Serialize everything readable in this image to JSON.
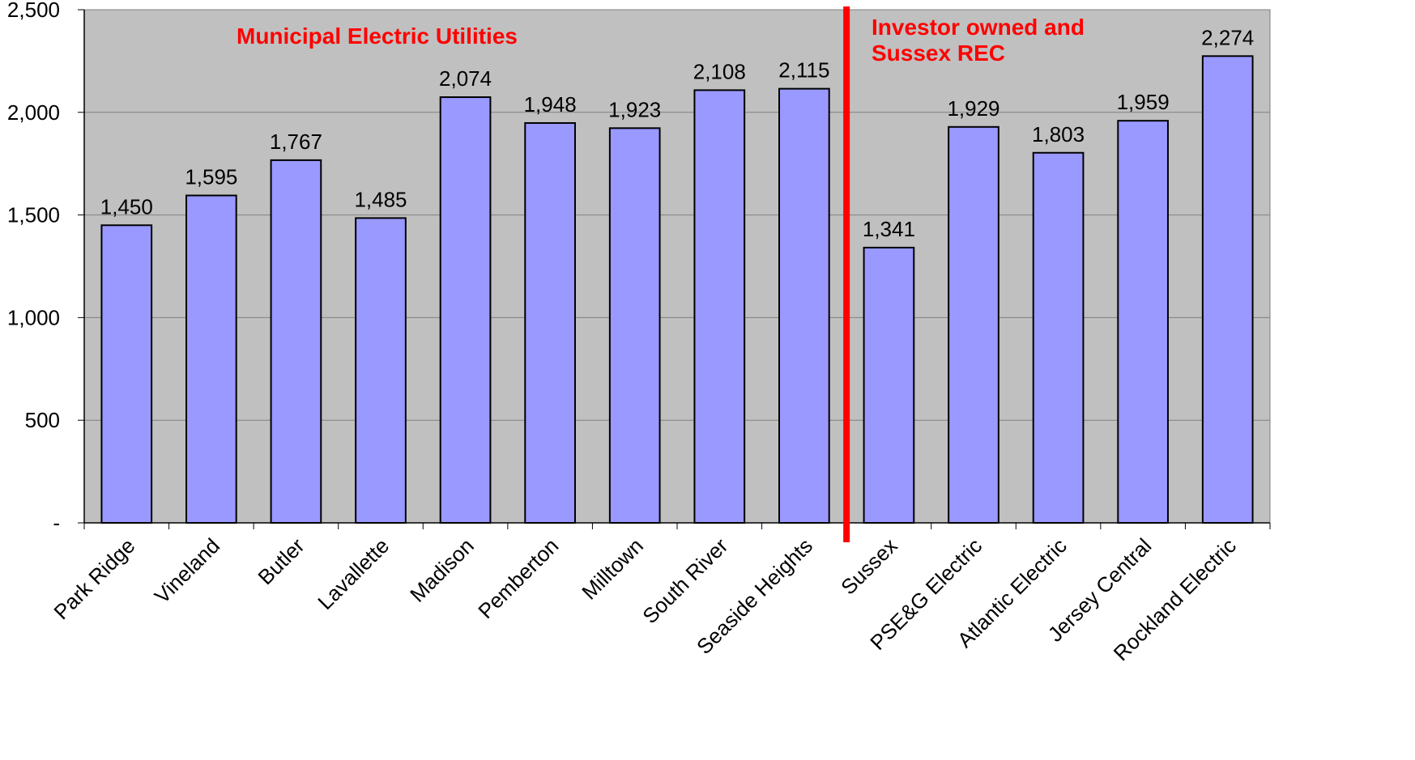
{
  "chart_data": {
    "type": "bar",
    "categories": [
      "Park Ridge",
      "Vineland",
      "Butler",
      "Lavallette",
      "Madison",
      "Pemberton",
      "Milltown",
      "South River",
      "Seaside Heights",
      "Sussex",
      "PSE&G Electric",
      "Atlantic Electric",
      "Jersey Central",
      "Rockland Electric"
    ],
    "values": [
      1450,
      1595,
      1767,
      1485,
      2074,
      1948,
      1923,
      2108,
      2115,
      1341,
      1929,
      1803,
      1959,
      2274
    ],
    "value_labels": [
      "1,450",
      "1,595",
      "1,767",
      "1,485",
      "2,074",
      "1,948",
      "1,923",
      "2,108",
      "2,115",
      "1,341",
      "1,929",
      "1,803",
      "1,959",
      "2,274"
    ],
    "ylim": [
      0,
      2500
    ],
    "y_ticks": [
      0,
      500,
      1000,
      1500,
      2000,
      2500
    ],
    "y_tick_labels": [
      "-",
      "500",
      "1,000",
      "1,500",
      "2,000",
      "2,500"
    ],
    "grid": true,
    "title": "",
    "xlabel": "",
    "ylabel": "",
    "annotations": {
      "left_group": "Municipal Electric Utilities",
      "right_group_line1": "Investor owned and",
      "right_group_line2": "Sussex REC"
    },
    "divider_after_category": "Seaside Heights",
    "colors": {
      "bar_fill": "#9999ff",
      "bar_stroke": "#000000",
      "plot_background": "#c0c0c0",
      "gridline": "#808080",
      "annotation": "#ff0000",
      "divider": "#ff0000"
    }
  }
}
